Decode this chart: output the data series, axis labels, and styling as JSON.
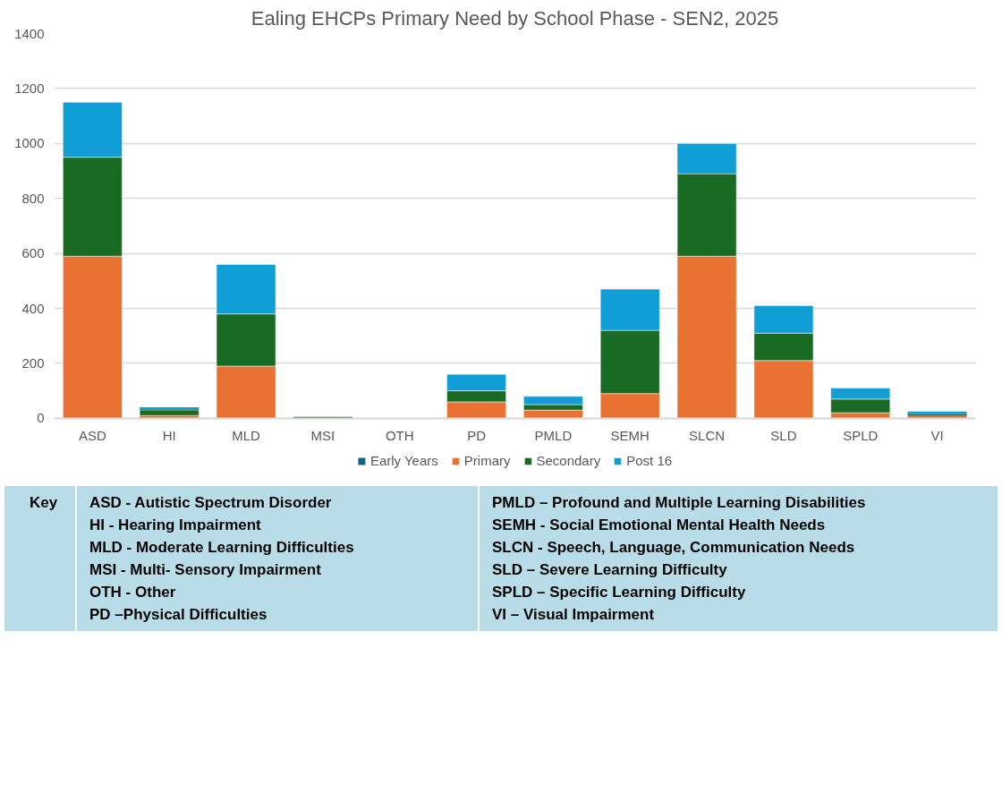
{
  "chart_data": {
    "type": "bar",
    "title": "Ealing EHCPs Primary Need by School Phase - SEN2, 2025",
    "categories": [
      "ASD",
      "HI",
      "MLD",
      "MSI",
      "OTH",
      "PD",
      "PMLD",
      "SEMH",
      "SLCN",
      "SLD",
      "SPLD",
      "VI"
    ],
    "stacked": true,
    "series": [
      {
        "name": "Early Years",
        "color": "#156082",
        "values": [
          0,
          0,
          0,
          0,
          0,
          0,
          0,
          0,
          0,
          0,
          0,
          0
        ]
      },
      {
        "name": "Primary",
        "color": "#e97132",
        "values": [
          590,
          10,
          190,
          0,
          0,
          60,
          30,
          90,
          590,
          210,
          20,
          10
        ]
      },
      {
        "name": "Secondary",
        "color": "#196b24",
        "values": [
          360,
          20,
          190,
          5,
          0,
          40,
          20,
          230,
          300,
          100,
          50,
          5
        ]
      },
      {
        "name": "Post 16",
        "color": "#0f9ed5",
        "values": [
          200,
          10,
          180,
          0,
          0,
          60,
          30,
          150,
          110,
          100,
          40,
          10
        ]
      }
    ],
    "ylim": [
      0,
      1400
    ],
    "yticks": [
      0,
      200,
      400,
      600,
      800,
      1000,
      1200,
      1400
    ],
    "grid": "y",
    "legend": "bottom",
    "annotations": [
      "Key",
      "ASD -  Autistic Spectrum Disorder",
      "HI - Hearing Impairment",
      "MLD -  Moderate Learning Difficulties",
      "MSI -  Multi- Sensory Impairment",
      "OTH - Other",
      "PD –Physical Difficulties",
      "PMLD – Profound and Multiple Learning Disabilities",
      "SEMH -  Social Emotional Mental Health Needs",
      "SLCN -  Speech, Language, Communication Needs",
      "SLD – Severe Learning Difficulty",
      "SPLD – Specific Learning Difficulty",
      "VI – Visual Impairment"
    ]
  }
}
